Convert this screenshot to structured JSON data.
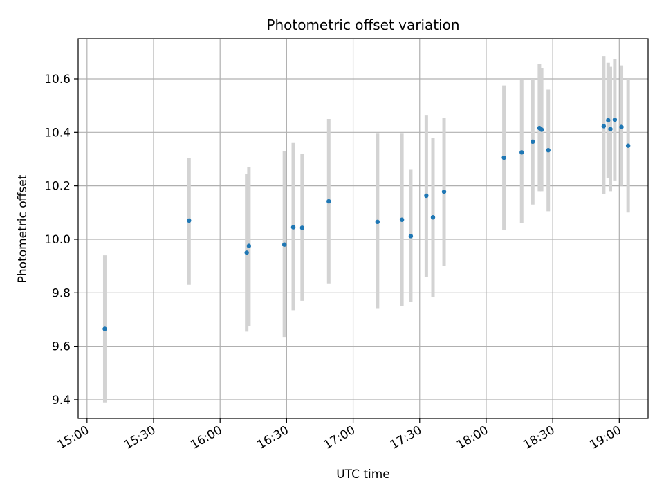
{
  "chart_data": {
    "type": "scatter",
    "title": "Photometric offset variation",
    "xlabel": "UTC time",
    "ylabel": "Photometric offset",
    "x_unit": "HH:MM",
    "xlim": [
      "14:56",
      "19:13"
    ],
    "ylim": [
      9.33,
      10.75
    ],
    "x_ticks": [
      "15:00",
      "15:30",
      "16:00",
      "16:30",
      "17:00",
      "17:30",
      "18:00",
      "18:30",
      "19:00"
    ],
    "y_ticks": [
      9.4,
      9.6,
      9.8,
      10.0,
      10.2,
      10.4,
      10.6
    ],
    "y_tick_labels": [
      "9.4",
      "9.6",
      "9.8",
      "10.0",
      "10.2",
      "10.4",
      "10.6"
    ],
    "grid": true,
    "colors": {
      "point": "#1f77b4",
      "errorbar": "#d3d3d3",
      "grid": "#b0b0b0"
    },
    "series": [
      {
        "points": [
          {
            "x": "15:08",
            "y": 9.665,
            "lo": 9.39,
            "hi": 9.94
          },
          {
            "x": "15:46",
            "y": 10.07,
            "lo": 9.83,
            "hi": 10.305
          },
          {
            "x": "16:12",
            "y": 9.95,
            "lo": 9.655,
            "hi": 10.245
          },
          {
            "x": "16:13",
            "y": 9.975,
            "lo": 9.675,
            "hi": 10.27
          },
          {
            "x": "16:29",
            "y": 9.98,
            "lo": 9.635,
            "hi": 10.33
          },
          {
            "x": "16:33",
            "y": 10.045,
            "lo": 9.735,
            "hi": 10.36
          },
          {
            "x": "16:37",
            "y": 10.043,
            "lo": 9.77,
            "hi": 10.32
          },
          {
            "x": "16:49",
            "y": 10.142,
            "lo": 9.835,
            "hi": 10.45
          },
          {
            "x": "17:11",
            "y": 10.065,
            "lo": 9.74,
            "hi": 10.395
          },
          {
            "x": "17:22",
            "y": 10.073,
            "lo": 9.75,
            "hi": 10.395
          },
          {
            "x": "17:26",
            "y": 10.012,
            "lo": 9.765,
            "hi": 10.26
          },
          {
            "x": "17:33",
            "y": 10.163,
            "lo": 9.86,
            "hi": 10.465
          },
          {
            "x": "17:36",
            "y": 10.082,
            "lo": 9.785,
            "hi": 10.38
          },
          {
            "x": "17:41",
            "y": 10.178,
            "lo": 9.9,
            "hi": 10.455
          },
          {
            "x": "18:08",
            "y": 10.305,
            "lo": 10.035,
            "hi": 10.575
          },
          {
            "x": "18:16",
            "y": 10.325,
            "lo": 10.06,
            "hi": 10.595
          },
          {
            "x": "18:21",
            "y": 10.365,
            "lo": 10.13,
            "hi": 10.6
          },
          {
            "x": "18:24",
            "y": 10.416,
            "lo": 10.18,
            "hi": 10.655
          },
          {
            "x": "18:25",
            "y": 10.41,
            "lo": 10.18,
            "hi": 10.64
          },
          {
            "x": "18:28",
            "y": 10.333,
            "lo": 10.105,
            "hi": 10.56
          },
          {
            "x": "18:53",
            "y": 10.423,
            "lo": 10.17,
            "hi": 10.685
          },
          {
            "x": "18:55",
            "y": 10.445,
            "lo": 10.23,
            "hi": 10.66
          },
          {
            "x": "18:56",
            "y": 10.412,
            "lo": 10.18,
            "hi": 10.645
          },
          {
            "x": "18:58",
            "y": 10.447,
            "lo": 10.22,
            "hi": 10.675
          },
          {
            "x": "19:01",
            "y": 10.42,
            "lo": 10.2,
            "hi": 10.65
          },
          {
            "x": "19:04",
            "y": 10.35,
            "lo": 10.1,
            "hi": 10.6
          }
        ]
      }
    ]
  }
}
